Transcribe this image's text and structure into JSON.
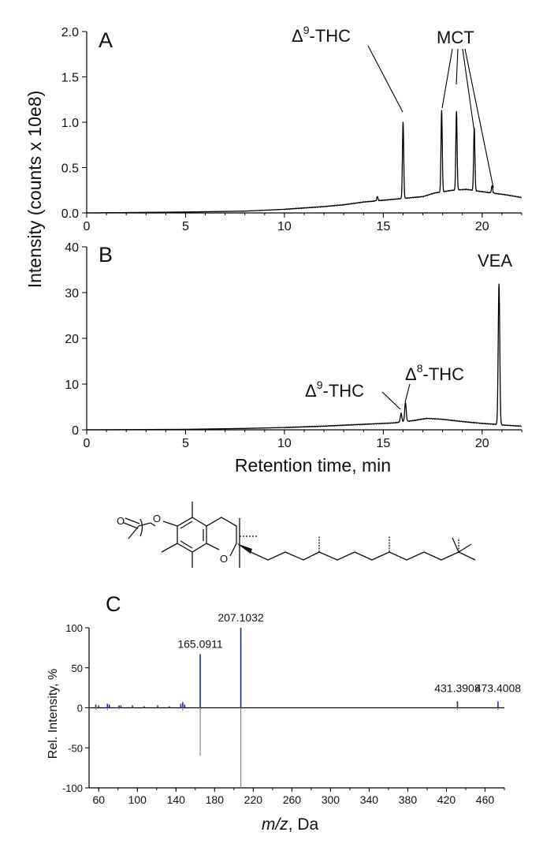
{
  "chart_data": [
    {
      "panel": "A",
      "type": "line",
      "xlim": [
        0,
        22
      ],
      "ylim": [
        0,
        2.0
      ],
      "xticks": [
        "0",
        "5",
        "10",
        "15",
        "20"
      ],
      "yticks": [
        "0.0",
        "0.5",
        "1.0",
        "1.5",
        "2.0"
      ],
      "baseline": [
        [
          0,
          0.0
        ],
        [
          5,
          0.01
        ],
        [
          8,
          0.02
        ],
        [
          10,
          0.04
        ],
        [
          12,
          0.07
        ],
        [
          13,
          0.09
        ],
        [
          14,
          0.12
        ],
        [
          15,
          0.14
        ],
        [
          16,
          0.16
        ],
        [
          17,
          0.18
        ],
        [
          17.6,
          0.22
        ],
        [
          18.5,
          0.25
        ],
        [
          19.2,
          0.26
        ],
        [
          19.8,
          0.24
        ],
        [
          20.5,
          0.22
        ],
        [
          21.2,
          0.2
        ],
        [
          22,
          0.17
        ]
      ],
      "peaks": [
        {
          "x": 14.7,
          "y": 0.18
        },
        {
          "x": 16.0,
          "y": 1.0
        },
        {
          "x": 17.95,
          "y": 1.13
        },
        {
          "x": 18.7,
          "y": 1.12
        },
        {
          "x": 19.6,
          "y": 0.94
        },
        {
          "x": 20.5,
          "y": 0.3
        }
      ],
      "annotations": [
        {
          "text": "THC",
          "prefix": "Δ",
          "sup": "9"
        },
        {
          "text": "MCT"
        }
      ]
    },
    {
      "panel": "B",
      "type": "line",
      "xlim": [
        0,
        22
      ],
      "ylim": [
        0,
        40
      ],
      "xticks": [
        "0",
        "5",
        "10",
        "15",
        "20"
      ],
      "yticks": [
        "0",
        "10",
        "20",
        "30",
        "40"
      ],
      "baseline": [
        [
          0,
          0.0
        ],
        [
          5,
          0.1
        ],
        [
          8,
          0.3
        ],
        [
          10,
          0.5
        ],
        [
          12,
          0.8
        ],
        [
          14,
          1.2
        ],
        [
          15.5,
          1.5
        ],
        [
          16.5,
          2.0
        ],
        [
          17.2,
          2.5
        ],
        [
          18,
          2.3
        ],
        [
          19,
          1.8
        ],
        [
          20,
          1.4
        ],
        [
          20.7,
          1.2
        ],
        [
          21.2,
          1.0
        ],
        [
          22,
          0.8
        ]
      ],
      "peaks": [
        {
          "x": 15.9,
          "y": 3.6
        },
        {
          "x": 16.12,
          "y": 5.9
        },
        {
          "x": 20.85,
          "y": 31.8
        }
      ],
      "annotations": [
        {
          "text": "THC",
          "prefix": "Δ",
          "sup": "9"
        },
        {
          "text": "THC",
          "prefix": "Δ",
          "sup": "8"
        },
        {
          "text": "VEA"
        }
      ]
    },
    {
      "panel": "C",
      "type": "bar",
      "xlim": [
        50,
        480
      ],
      "ylim": [
        -100,
        100
      ],
      "xticks": [
        "60",
        "100",
        "140",
        "180",
        "220",
        "260",
        "300",
        "340",
        "380",
        "420",
        "460"
      ],
      "yticks": [
        "100",
        "50",
        "0",
        "-50",
        "-100"
      ],
      "series": [
        {
          "values": [
            [
              57,
              4
            ],
            [
              60,
              3
            ],
            [
              69,
              5
            ],
            [
              71,
              4
            ],
            [
              81,
              3
            ],
            [
              83,
              3
            ],
            [
              95,
              3
            ],
            [
              107,
              2
            ],
            [
              121,
              3
            ],
            [
              133,
              2
            ],
            [
              145,
              5
            ],
            [
              147,
              7
            ],
            [
              149,
              4
            ],
            [
              165.0911,
              67
            ],
            [
              207.1032,
              100
            ],
            [
              431.3908,
              8
            ],
            [
              473.4008,
              8
            ]
          ]
        },
        {
          "values": [
            [
              57,
              -2
            ],
            [
              69,
              -3
            ],
            [
              81,
              -2
            ],
            [
              147,
              -4
            ],
            [
              165.0911,
              -60
            ],
            [
              207.1032,
              -100
            ],
            [
              431.3908,
              -3
            ],
            [
              473.4008,
              -3
            ]
          ]
        }
      ],
      "labels": [
        "165.0911",
        "207.1032",
        "431.3908",
        "473.4008"
      ]
    }
  ],
  "texts": {
    "panel_a": "A",
    "panel_b": "B",
    "panel_c": "C",
    "y_label_chrom": "Intensity (counts x 10e8)",
    "x_label_chrom": "Retention time, min",
    "y_label_ms": "Rel. Intensity, %",
    "x_label_ms_italic": "m/z",
    "x_label_ms_rest": ", Da",
    "delta": "Δ",
    "sup9": "9",
    "sup8": "8",
    "thc": "-THC",
    "mct": "MCT",
    "vea": "VEA",
    "atom_o": "O"
  }
}
